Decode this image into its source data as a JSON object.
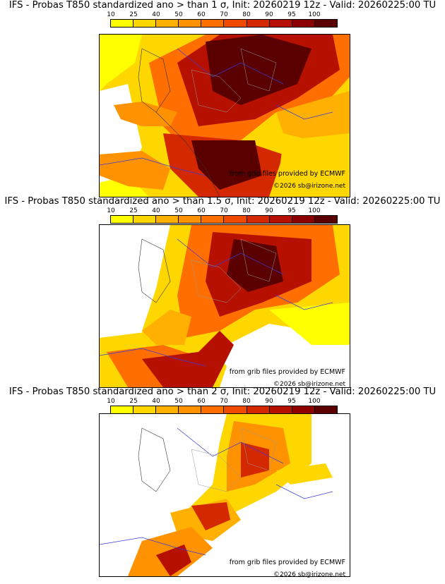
{
  "panels": [
    {
      "title": "IFS - Probas T850  standardized ano > than 1 σ, Init: 20260219 12z - Valid: 20260225:00 TU"
    },
    {
      "title": "IFS - Probas T850  standardized ano > than 1.5 σ, Init: 20260219 12z - Valid: 20260225:00 TU"
    },
    {
      "title": "IFS - Probas T850  standardized ano > than 2 σ, Init: 20260219 12z - Valid: 20260225:00 TU"
    }
  ],
  "colorbar": {
    "ticks": [
      "10",
      "25",
      "40",
      "50",
      "60",
      "70",
      "80",
      "90",
      "95",
      "100"
    ],
    "colors": [
      "#ffff00",
      "#ffd700",
      "#ffb000",
      "#ff9200",
      "#ff6e00",
      "#f04a00",
      "#d42800",
      "#b51000",
      "#8c0000",
      "#5a0000"
    ]
  },
  "credits": {
    "source": "from grib files provided by ECMWF",
    "copyright": "©2026 sb@irizone.net"
  }
}
